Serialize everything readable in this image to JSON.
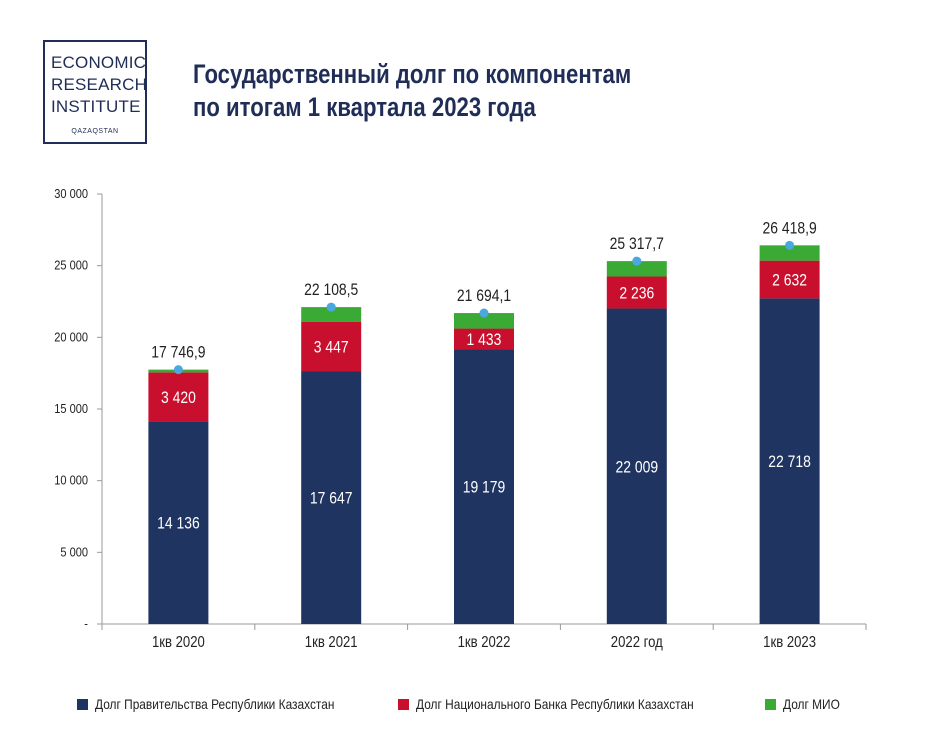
{
  "logo": {
    "line1": "ECONOMIC",
    "line2": "RESEARCH",
    "line3": "INSTITUTE",
    "sub": "QAZAQSTAN"
  },
  "header": {
    "title_line1": "Государственный долг по компонентам",
    "title_line2": "по итогам 1 квартала 2023 года"
  },
  "colors": {
    "government": "#1f3461",
    "national_bank": "#c8102e",
    "mio": "#3aaa35",
    "total_marker": "#4aa8e0"
  },
  "chart_data": {
    "type": "bar",
    "stacked": true,
    "title": "Государственный долг по компонентам по итогам 1 квартала 2023 года",
    "xlabel": "",
    "ylabel": "",
    "ylim": [
      0,
      30000
    ],
    "yticks": [
      0,
      5000,
      10000,
      15000,
      20000,
      25000,
      30000
    ],
    "ytick_labels": [
      "-",
      "5 000",
      "10 000",
      "15 000",
      "20 000",
      "25 000",
      "30 000"
    ],
    "categories": [
      "1кв 2020",
      "1кв 2021",
      "1кв 2022",
      "2022 год",
      "1кв 2023"
    ],
    "series": [
      {
        "name": "Долг Правительства Республики Казахстан",
        "values": [
          14136,
          17647,
          19179,
          22009,
          22718
        ],
        "labels": [
          "14 136",
          "17 647",
          "19 179",
          "22 009",
          "22 718"
        ]
      },
      {
        "name": "Долг Национального  Банка  Республики Казахстан",
        "values": [
          3420,
          3447,
          1433,
          2236,
          2632
        ],
        "labels": [
          "3 420",
          "3 447",
          "1 433",
          "2 236",
          "2 632"
        ]
      },
      {
        "name": "Долг МИО",
        "values": [
          190.9,
          1014.5,
          1082.1,
          1072.7,
          1068.9
        ]
      }
    ],
    "totals": [
      17746.9,
      22108.5,
      21694.1,
      25317.7,
      26418.9
    ],
    "total_labels": [
      "17 746,9",
      "22 108,5",
      "21 694,1",
      "25 317,7",
      "26 418,9"
    ],
    "legend_position": "bottom",
    "grid": false
  }
}
